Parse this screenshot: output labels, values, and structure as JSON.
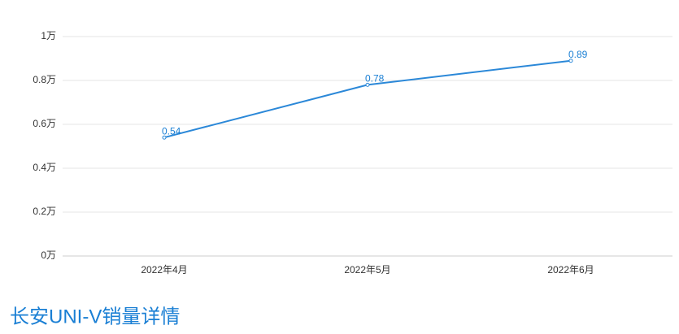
{
  "chart_data": {
    "type": "line",
    "title": "长安UNI-V销量详情",
    "categories": [
      "2022年4月",
      "2022年5月",
      "2022年6月"
    ],
    "values": [
      0.54,
      0.78,
      0.89
    ],
    "color": "#2b88d8",
    "ylim": [
      0,
      1
    ],
    "yticks": [
      {
        "value": 0,
        "label": "0万"
      },
      {
        "value": 0.2,
        "label": "0.2万"
      },
      {
        "value": 0.4,
        "label": "0.4万"
      },
      {
        "value": 0.6,
        "label": "0.6万"
      },
      {
        "value": 0.8,
        "label": "0.8万"
      },
      {
        "value": 1,
        "label": "1万"
      }
    ],
    "grid": true
  }
}
